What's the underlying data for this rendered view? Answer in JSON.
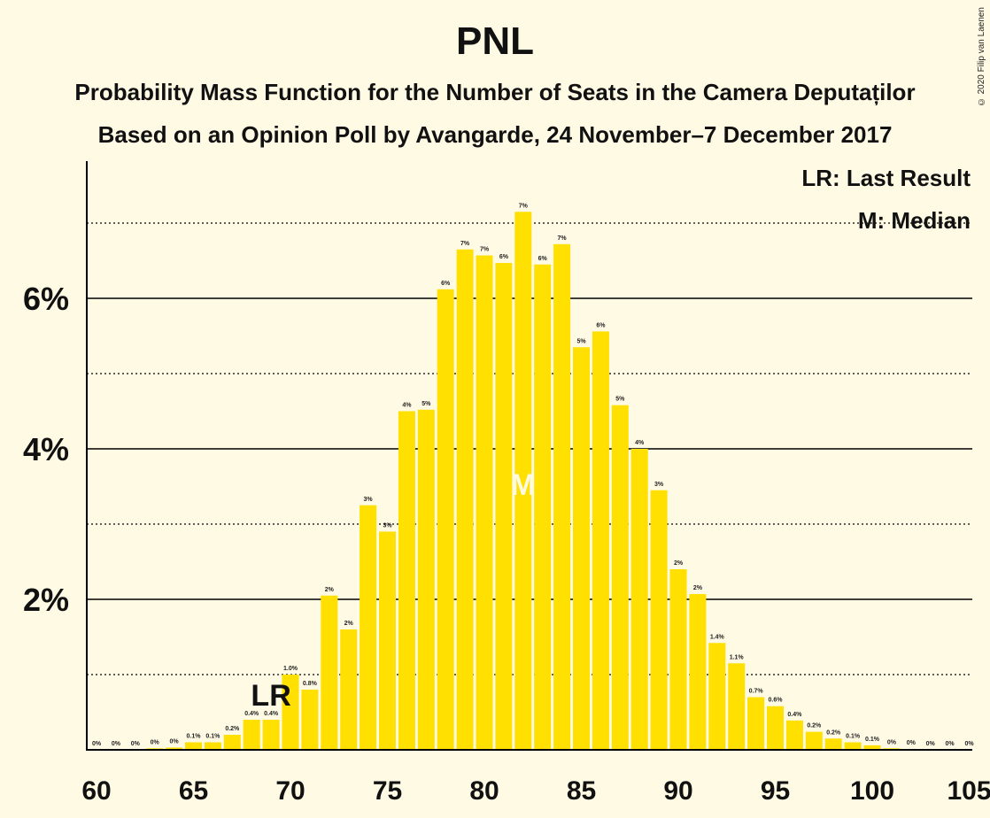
{
  "copyright": "© 2020 Filip van Laenen",
  "chart_data": {
    "type": "bar",
    "title": "PNL",
    "subtitle": "Probability Mass Function for the Number of Seats in the Camera Deputaților",
    "subtitle2": "Based on an Opinion Poll by Avangarde, 24 November–7 December 2017",
    "legend": [
      "LR: Last Result",
      "M: Median"
    ],
    "legend_position": "top-right",
    "xlim": [
      60,
      105
    ],
    "ylim": [
      0,
      7.6
    ],
    "x_ticks": [
      60,
      65,
      70,
      75,
      80,
      85,
      90,
      95,
      100,
      105
    ],
    "y_ticks": [
      2,
      4,
      6
    ],
    "y_tick_labels": [
      "2%",
      "4%",
      "6%"
    ],
    "gridlines_solid": [
      2,
      4,
      6
    ],
    "gridlines_dotted": [
      1,
      3,
      5,
      7
    ],
    "bar_color": "#FFE000",
    "seats": [
      60,
      61,
      62,
      63,
      64,
      65,
      66,
      67,
      68,
      69,
      70,
      71,
      72,
      73,
      74,
      75,
      76,
      77,
      78,
      79,
      80,
      81,
      82,
      83,
      84,
      85,
      86,
      87,
      88,
      89,
      90,
      91,
      92,
      93,
      94,
      95,
      96,
      97,
      98,
      99,
      100,
      101,
      102,
      103,
      104,
      105
    ],
    "values": [
      0,
      0,
      0,
      0.02,
      0.03,
      0.1,
      0.1,
      0.2,
      0.4,
      0.4,
      1.0,
      0.8,
      2.05,
      1.6,
      3.25,
      2.9,
      4.5,
      4.52,
      6.12,
      6.65,
      6.57,
      6.47,
      7.15,
      6.45,
      6.72,
      5.35,
      5.56,
      4.58,
      4.0,
      3.45,
      2.4,
      2.07,
      1.42,
      1.15,
      0.7,
      0.58,
      0.39,
      0.24,
      0.15,
      0.1,
      0.06,
      0.02,
      0.01,
      0,
      0,
      0
    ],
    "labels": [
      "0%",
      "0%",
      "0%",
      "0%",
      "0%",
      "0.1%",
      "0.1%",
      "0.2%",
      "0.4%",
      "0.4%",
      "1.0%",
      "0.8%",
      "2%",
      "2%",
      "3%",
      "3%",
      "4%",
      "5%",
      "6%",
      "7%",
      "7%",
      "6%",
      "7%",
      "6%",
      "7%",
      "5%",
      "6%",
      "5%",
      "4%",
      "3%",
      "2%",
      "2%",
      "1.4%",
      "1.1%",
      "0.7%",
      "0.6%",
      "0.4%",
      "0.2%",
      "0.2%",
      "0.1%",
      "0.1%",
      "0%",
      "0%",
      "0%",
      "0%",
      "0%"
    ],
    "last_result": {
      "seat": 69,
      "label": "LR"
    },
    "median": {
      "seat": 82,
      "label": "M"
    }
  }
}
